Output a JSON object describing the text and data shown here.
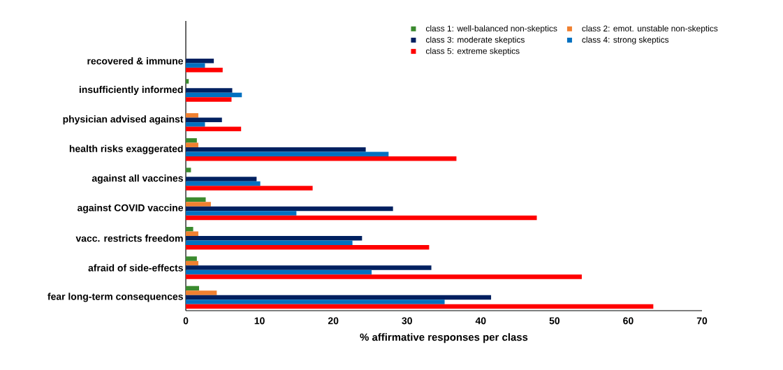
{
  "chart_data": {
    "type": "bar",
    "orientation": "horizontal",
    "xlabel": "% affirmative responses per class",
    "categories": [
      "recovered & immune",
      "insufficiently informed",
      "physician advised against",
      "health risks exaggerated",
      "against all vaccines",
      "against COVID vaccine",
      "vacc. restricts freedom",
      "afraid of side-effects",
      "fear long-term consequences"
    ],
    "series": [
      {
        "name": "class 1: well-balanced non-skeptics",
        "color": "#3a8a2e",
        "values": [
          0,
          0.4,
          0,
          1.5,
          0.7,
          2.7,
          1.0,
          1.5,
          1.8
        ]
      },
      {
        "name": "class 2: emot. unstable non-skeptics",
        "color": "#f08030",
        "values": [
          0,
          0,
          1.7,
          1.7,
          0,
          3.4,
          1.7,
          1.7,
          4.2
        ]
      },
      {
        "name": "class 3: moderate skeptics",
        "color": "#002060",
        "values": [
          3.8,
          6.3,
          4.9,
          24.4,
          9.6,
          28.1,
          23.9,
          33.3,
          41.4
        ]
      },
      {
        "name": "class 4: strong skeptics",
        "color": "#0070c0",
        "values": [
          2.6,
          7.6,
          2.6,
          27.5,
          10.1,
          15.0,
          22.6,
          25.2,
          35.1
        ]
      },
      {
        "name": "class 5: extreme skeptics",
        "color": "#ff0000",
        "values": [
          5.0,
          6.2,
          7.5,
          36.7,
          17.2,
          47.6,
          33.0,
          53.7,
          63.4
        ]
      }
    ],
    "xlim": [
      0,
      70
    ],
    "xticks": [
      0,
      10,
      20,
      30,
      40,
      50,
      60,
      70
    ],
    "legend": "top right"
  }
}
